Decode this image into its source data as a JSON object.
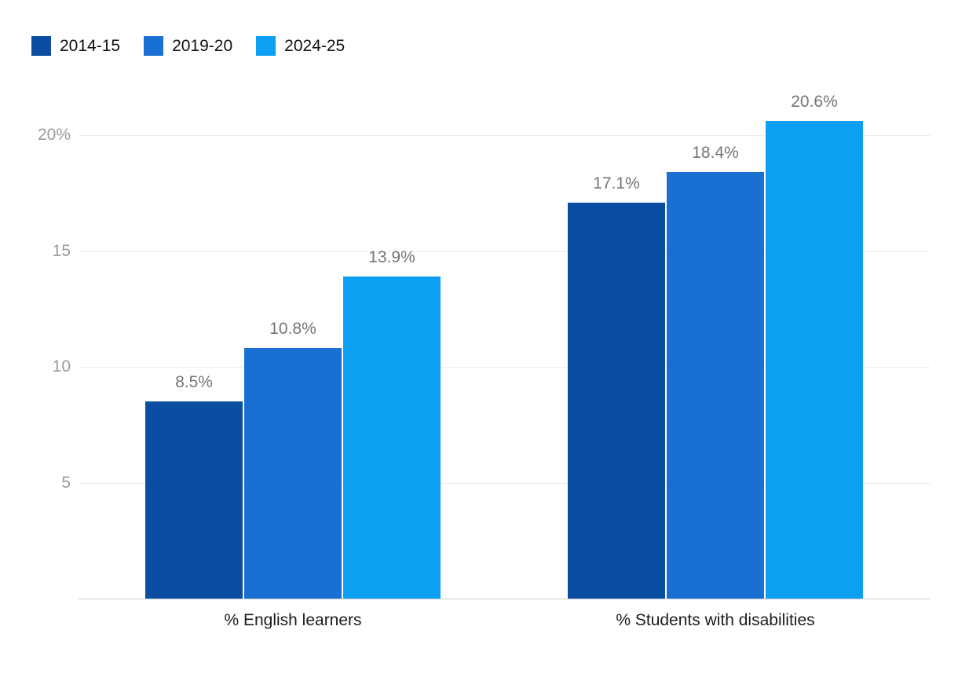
{
  "chart_data": {
    "type": "bar",
    "title": "",
    "categories": [
      "% English learners",
      "% Students with disabilities"
    ],
    "series": [
      {
        "name": "2014-15",
        "color": "#0b4da1",
        "values": [
          8.5,
          17.1
        ]
      },
      {
        "name": "2019-20",
        "color": "#1a70d2",
        "values": [
          10.8,
          18.4
        ]
      },
      {
        "name": "2024-25",
        "color": "#0c9ff2",
        "values": [
          13.9,
          20.6
        ]
      }
    ],
    "value_suffix": "%",
    "data_labels": [
      [
        "8.5%",
        "17.1%"
      ],
      [
        "10.8%",
        "18.4%"
      ],
      [
        "13.9%",
        "20.6%"
      ]
    ],
    "y_ticks": [
      5,
      10,
      15,
      20
    ],
    "y_tick_labels": [
      "5",
      "10",
      "15",
      "20%"
    ],
    "ylim": [
      0,
      21.5
    ],
    "grid": "horizontal",
    "legend_position": "top-left"
  },
  "colors": {
    "background": "#ffffff",
    "gridline": "#ededed",
    "axis_line": "#cccccc",
    "tick_label": "#9b9b9b",
    "data_label": "#757575",
    "category_label": "#1c1c1c"
  }
}
